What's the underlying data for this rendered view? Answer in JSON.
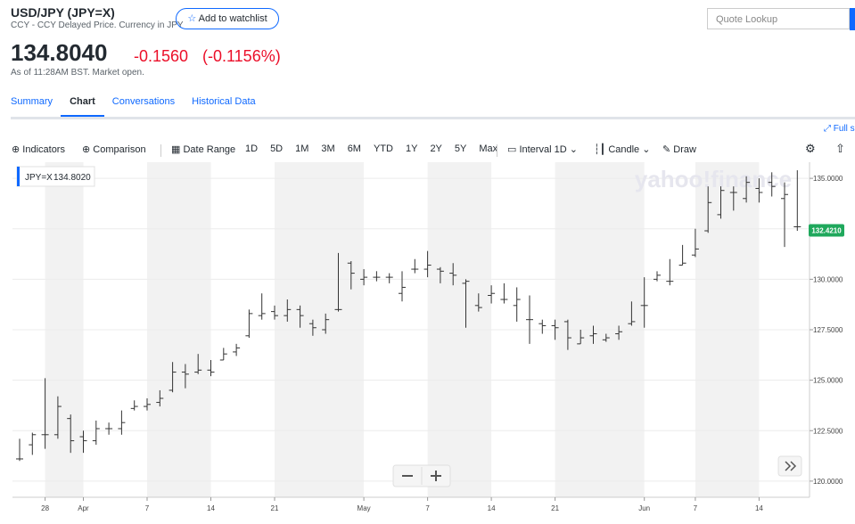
{
  "header": {
    "symbol": "USD/JPY (JPY=X)",
    "subtitle": "CCY - CCY Delayed Price. Currency in JPY",
    "watchlist": "Add to watchlist",
    "price": "134.8040",
    "change": "-0.1560",
    "change_pct": "(-0.1156%)",
    "as_of": "As of 11:28AM BST. Market open."
  },
  "search": {
    "placeholder": "Quote Lookup"
  },
  "tabs": [
    "Summary",
    "Chart",
    "Conversations",
    "Historical Data"
  ],
  "full_screen": "Full screen",
  "toolbar": {
    "indicators": "Indicators",
    "comparison": "Comparison",
    "date_range": "Date Range",
    "ranges": [
      "1D",
      "5D",
      "1M",
      "3M",
      "6M",
      "YTD",
      "1Y",
      "2Y",
      "5Y",
      "Max"
    ],
    "interval": "Interval",
    "interval_value": "1D",
    "chart_type": "Candle",
    "draw": "Draw"
  },
  "chart_data": {
    "type": "ohlc",
    "watermark": "yahoo!finance",
    "legend_value": "134.8020",
    "categories": [
      null,
      null,
      "28",
      null,
      null,
      "Apr",
      null,
      null,
      null,
      null,
      "7",
      null,
      null,
      null,
      null,
      "14",
      null,
      null,
      null,
      null,
      "21",
      null,
      null,
      null,
      null,
      null,
      null,
      "May",
      null,
      null,
      null,
      null,
      "7",
      null,
      null,
      null,
      null,
      "14",
      null,
      null,
      null,
      null,
      "21",
      null,
      null,
      null,
      null,
      null,
      null,
      "Jun",
      null,
      null,
      null,
      "7",
      null,
      null,
      null,
      null,
      "14",
      null,
      null,
      null
    ],
    "series": [
      {
        "name": "JPY=X",
        "color": "#333333",
        "open": [
          121.1,
          121.8,
          122.3,
          122.3,
          123.1,
          122.2,
          122.0,
          122.6,
          122.6,
          123.6,
          123.7,
          123.9,
          124.5,
          125.4,
          125.4,
          125.5,
          126.0,
          126.4,
          127.2,
          128.2,
          128.4,
          128.2,
          128.5,
          127.8,
          127.5,
          128.5,
          130.8,
          130.0,
          130.1,
          130.1,
          129.3,
          130.5,
          130.5,
          130.5,
          130.3,
          129.8,
          128.7,
          129.2,
          129.0,
          128.7,
          128.0,
          127.8,
          127.7,
          127.9,
          126.8,
          127.2,
          127.0,
          127.3,
          127.8,
          128.7,
          130.0,
          129.9,
          130.7,
          131.2,
          132.4,
          133.2,
          134.3,
          134.0,
          134.5,
          134.8,
          134.0,
          132.6
        ],
        "high": [
          122.1,
          122.4,
          125.1,
          124.2,
          123.3,
          122.5,
          123.0,
          122.9,
          123.5,
          124.0,
          124.1,
          124.5,
          125.9,
          125.8,
          126.3,
          126.0,
          126.6,
          126.8,
          128.5,
          129.3,
          128.7,
          129.0,
          128.7,
          128.0,
          128.3,
          131.3,
          130.9,
          130.5,
          130.4,
          130.3,
          130.4,
          131.0,
          131.4,
          130.6,
          130.8,
          130.0,
          129.3,
          129.7,
          129.8,
          129.6,
          129.2,
          128.0,
          128.0,
          128.0,
          127.5,
          127.7,
          127.3,
          127.7,
          128.9,
          130.1,
          130.4,
          131.0,
          131.7,
          132.5,
          134.6,
          134.6,
          134.6,
          135.1,
          135.0,
          135.3,
          134.8,
          135.4
        ],
        "low": [
          121.0,
          121.3,
          121.6,
          122.1,
          121.4,
          121.4,
          121.8,
          122.3,
          122.3,
          123.5,
          123.5,
          123.7,
          124.4,
          124.6,
          125.3,
          125.2,
          126.0,
          126.2,
          127.1,
          128.0,
          128.0,
          127.9,
          127.6,
          127.2,
          127.3,
          128.4,
          129.5,
          129.7,
          129.9,
          129.8,
          128.9,
          130.3,
          130.1,
          129.8,
          129.7,
          127.6,
          128.4,
          128.8,
          128.8,
          127.9,
          126.8,
          127.3,
          127.0,
          126.5,
          126.8,
          126.8,
          126.9,
          127.0,
          127.7,
          127.6,
          129.9,
          129.7,
          130.7,
          131.1,
          132.3,
          133.0,
          133.4,
          133.8,
          133.8,
          134.1,
          131.6,
          132.4
        ],
        "close": [
          121.1,
          122.3,
          122.3,
          123.7,
          122.0,
          122.0,
          122.6,
          122.6,
          122.9,
          123.7,
          123.8,
          124.1,
          125.4,
          125.3,
          125.5,
          125.4,
          126.3,
          126.6,
          128.3,
          128.3,
          128.2,
          128.5,
          128.2,
          127.6,
          128.0,
          128.5,
          130.3,
          130.1,
          130.1,
          130.1,
          129.6,
          130.5,
          130.7,
          130.4,
          130.2,
          129.9,
          128.6,
          129.3,
          129.0,
          129.0,
          128.0,
          127.7,
          127.6,
          127.1,
          127.1,
          127.3,
          127.1,
          127.4,
          127.9,
          128.7,
          130.2,
          129.9,
          130.8,
          131.5,
          133.8,
          134.4,
          134.3,
          134.8,
          134.3,
          134.6,
          134.2,
          132.6
        ]
      }
    ],
    "last_price": {
      "value": 132.421,
      "label": "132.4210",
      "color": "#1fa85c"
    },
    "ylim": [
      119.2,
      135.8
    ],
    "yticks": [
      {
        "value": 120,
        "label": "120.0000"
      },
      {
        "value": 122.5,
        "label": "122.5000"
      },
      {
        "value": 125,
        "label": "125.0000"
      },
      {
        "value": 127.5,
        "label": "127.5000"
      },
      {
        "value": 130,
        "label": "130.0000"
      },
      {
        "value": 132.5,
        "label": "132.5000"
      },
      {
        "value": 135,
        "label": "135.0000"
      }
    ],
    "grid": true,
    "shading": "#f2f2f2"
  }
}
